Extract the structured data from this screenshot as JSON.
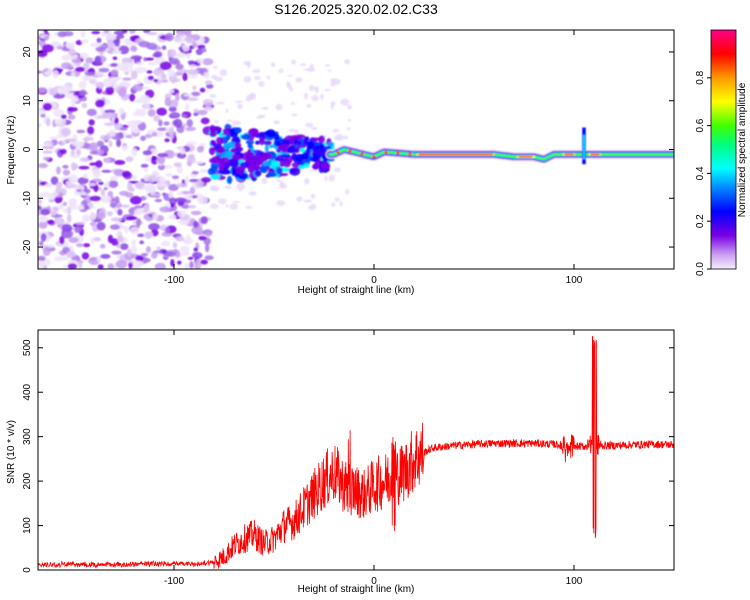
{
  "figure_title": "S126.2025.320.02.02.C33",
  "chart_data": [
    {
      "type": "heatmap",
      "xlabel": "Height of straight line (km)",
      "ylabel": "Frequency (Hz)",
      "xlim": [
        -168,
        150
      ],
      "ylim": [
        -24.5,
        24.5
      ],
      "xticks": [
        -100,
        0,
        100
      ],
      "xtick_labels": [
        "-100",
        "0",
        "100"
      ],
      "yticks": [
        -20,
        -10,
        0,
        10,
        20
      ],
      "ytick_labels": [
        "-20",
        "-10",
        "0",
        "10",
        "20"
      ],
      "noise_region_x": [
        -168,
        -82
      ],
      "signal_start_x": -82,
      "line_freq_points": [
        [
          -20,
          -1
        ],
        [
          -15,
          0
        ],
        [
          -10,
          -0.5
        ],
        [
          0,
          -1.5
        ],
        [
          5,
          -0.5
        ],
        [
          20,
          -1
        ],
        [
          60,
          -1
        ],
        [
          70,
          -1.5
        ],
        [
          80,
          -1.5
        ],
        [
          85,
          -2
        ],
        [
          90,
          -1
        ],
        [
          100,
          -1
        ],
        [
          110,
          -1
        ],
        [
          150,
          -1
        ]
      ],
      "peak_amplitude_segments": [
        [
          22,
          60
        ],
        [
          72,
          80
        ],
        [
          95,
          100
        ],
        [
          108,
          113
        ]
      ],
      "spike_x": 105,
      "colorbar": {
        "label": "Normalized spectral amplitude",
        "range": [
          0,
          1
        ],
        "ticks": [
          0.0,
          0.2,
          0.4,
          0.6,
          0.8
        ],
        "tick_labels": [
          "0.0",
          "0.2",
          "0.4",
          "0.6",
          "0.8"
        ],
        "colors": [
          "#f2e6fa",
          "#7a00e6",
          "#0000ff",
          "#00ffff",
          "#00ff40",
          "#ffff00",
          "#ff9900",
          "#ff0000",
          "#ff0088"
        ]
      }
    },
    {
      "type": "line",
      "xlabel": "Height of straight line (km)",
      "ylabel": "SNR (10 * v/v)",
      "xlim": [
        -168,
        150
      ],
      "ylim": [
        0,
        540
      ],
      "xticks": [
        -100,
        0,
        100
      ],
      "xtick_labels": [
        "-100",
        "0",
        "100"
      ],
      "yticks": [
        0,
        100,
        200,
        300,
        400,
        500
      ],
      "ytick_labels": [
        "0",
        "100",
        "200",
        "300",
        "400",
        "500"
      ],
      "line_color": "#ff0000",
      "x": [
        -168,
        -150,
        -130,
        -110,
        -90,
        -80,
        -75,
        -70,
        -65,
        -60,
        -55,
        -50,
        -45,
        -40,
        -35,
        -30,
        -25,
        -20,
        -15,
        -10,
        -5,
        0,
        5,
        10,
        15,
        20,
        25,
        30,
        40,
        50,
        60,
        70,
        80,
        90,
        95,
        100,
        105,
        108,
        110,
        112,
        115,
        120,
        130,
        140,
        150
      ],
      "values": [
        12,
        13,
        12,
        14,
        13,
        18,
        30,
        55,
        70,
        80,
        60,
        70,
        100,
        110,
        140,
        170,
        200,
        220,
        190,
        180,
        170,
        190,
        200,
        210,
        220,
        250,
        265,
        275,
        280,
        283,
        285,
        285,
        285,
        283,
        280,
        278,
        278,
        280,
        280,
        280,
        280,
        280,
        282,
        283,
        282
      ],
      "features": [
        {
          "x": 110,
          "peak": 540,
          "trough": 65
        },
        {
          "x": 97,
          "peak": 290,
          "trough": 250
        },
        {
          "x": -12,
          "peak": 330,
          "trough": 120
        },
        {
          "x": 10,
          "peak": 300,
          "trough": 75
        }
      ]
    }
  ]
}
